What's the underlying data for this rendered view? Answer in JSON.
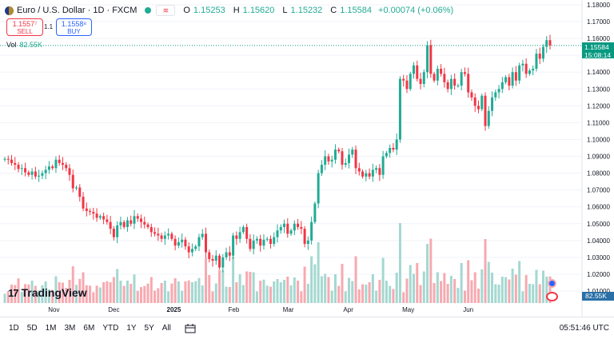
{
  "symbol": {
    "title": "Euro / U.S. Dollar · 1D · FXCM",
    "compare_icon": "compare-icon"
  },
  "ohlc": {
    "o_label": "O",
    "o": "1.15253",
    "h_label": "H",
    "h": "1.15620",
    "l_label": "L",
    "l": "1.15232",
    "c_label": "C",
    "c": "1.15584",
    "change": "+0.00074 (+0.06%)"
  },
  "trade": {
    "sell_price": "1.1557⁷",
    "sell_label": "SELL",
    "buy_price": "1.1558⁸",
    "buy_label": "BUY",
    "spread": "1.1"
  },
  "volume_legend": {
    "label": "Vol",
    "value": "82.55K"
  },
  "price_scale": {
    "ticks": [
      "1.18000",
      "1.17000",
      "1.16000",
      "1.15000",
      "1.14000",
      "1.13000",
      "1.12000",
      "1.11000",
      "1.10000",
      "1.09000",
      "1.08000",
      "1.07000",
      "1.06000",
      "1.05000",
      "1.04000",
      "1.03000",
      "1.02000",
      "1.01000"
    ],
    "last_price": "1.15584",
    "countdown": "15:08:14",
    "volume_tag": "82.55K"
  },
  "time_axis": {
    "labels": [
      "Nov",
      "Dec",
      "2025",
      "Feb",
      "Mar",
      "Apr",
      "May",
      "Jun"
    ]
  },
  "logo": {
    "mark": "17",
    "text": "TradingView"
  },
  "bottom_bar": {
    "ranges": [
      "1D",
      "5D",
      "1M",
      "3M",
      "6M",
      "YTD",
      "1Y",
      "5Y",
      "All"
    ],
    "clock": "05:51:46 UTC"
  },
  "colors": {
    "up": "#22ab94",
    "down": "#f23645",
    "vol_up": "#a4d8d1",
    "vol_down": "#f7a9b0"
  },
  "chart_data": {
    "type": "candlestick",
    "title": "Euro / U.S. Dollar · 1D · FXCM",
    "ylim": [
      1.01,
      1.18
    ],
    "x_labels": [
      "Nov",
      "Dec",
      "2025",
      "Feb",
      "Mar",
      "Apr",
      "May",
      "Jun"
    ],
    "close": [
      1.0885,
      1.088,
      1.086,
      1.085,
      1.0825,
      1.083,
      1.0805,
      1.079,
      1.081,
      1.078,
      1.0785,
      1.08,
      1.082,
      1.084,
      1.083,
      1.088,
      1.086,
      1.085,
      1.083,
      1.079,
      1.071,
      1.0715,
      1.066,
      1.059,
      1.0575,
      1.057,
      1.056,
      1.0535,
      1.0545,
      1.0525,
      1.051,
      1.047,
      1.042,
      1.049,
      1.051,
      1.048,
      1.052,
      1.05,
      1.0545,
      1.053,
      1.051,
      1.0495,
      1.048,
      1.045,
      1.044,
      1.043,
      1.041,
      1.043,
      1.044,
      1.041,
      1.037,
      1.039,
      1.0405,
      1.0365,
      1.033,
      1.035,
      1.0365,
      1.042,
      1.044,
      1.033,
      1.029,
      1.028,
      1.031,
      1.024,
      1.03,
      1.033,
      1.031,
      1.043,
      1.041,
      1.045,
      1.048,
      1.041,
      1.035,
      1.04,
      1.041,
      1.037,
      1.0405,
      1.041,
      1.038,
      1.042,
      1.046,
      1.048,
      1.05,
      1.044,
      1.046,
      1.05,
      1.048,
      1.047,
      1.038,
      1.04,
      1.051,
      1.062,
      1.08,
      1.085,
      1.09,
      1.087,
      1.088,
      1.094,
      1.093,
      1.085,
      1.086,
      1.091,
      1.094,
      1.083,
      1.081,
      1.078,
      1.08,
      1.078,
      1.082,
      1.083,
      1.079,
      1.09,
      1.092,
      1.095,
      1.094,
      1.1,
      1.136,
      1.135,
      1.13,
      1.139,
      1.144,
      1.136,
      1.133,
      1.14,
      1.156,
      1.139,
      1.135,
      1.142,
      1.139,
      1.134,
      1.13,
      1.136,
      1.132,
      1.132,
      1.14,
      1.139,
      1.128,
      1.125,
      1.12,
      1.118,
      1.126,
      1.108,
      1.117,
      1.125,
      1.128,
      1.13,
      1.134,
      1.137,
      1.132,
      1.14,
      1.135,
      1.144,
      1.145,
      1.139,
      1.141,
      1.142,
      1.151,
      1.148,
      1.155,
      1.159,
      1.1558
    ]
  }
}
